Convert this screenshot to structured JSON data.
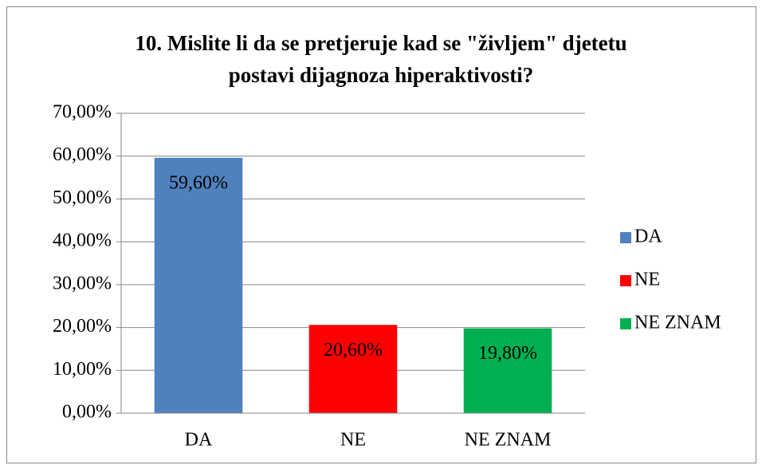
{
  "chart_data": {
    "type": "bar",
    "title": "10. Mislite li da se pretjeruje kad se \"življem\" djetetu postavi dijagnoza hiperaktivosti?",
    "categories": [
      "DA",
      "NE",
      "NE ZNAM"
    ],
    "values": [
      59.6,
      20.6,
      19.8
    ],
    "value_labels": [
      "59,60%",
      "20,60%",
      "19,80%"
    ],
    "colors": [
      "#4f81bd",
      "#ff0000",
      "#00b050"
    ],
    "ylim": [
      0,
      70
    ],
    "yticks": [
      {
        "value": 0,
        "label": "0,00%"
      },
      {
        "value": 10,
        "label": "10,00%"
      },
      {
        "value": 20,
        "label": "20,00%"
      },
      {
        "value": 30,
        "label": "30,00%"
      },
      {
        "value": 40,
        "label": "40,00%"
      },
      {
        "value": 50,
        "label": "50,00%"
      },
      {
        "value": 60,
        "label": "60,00%"
      },
      {
        "value": 70,
        "label": "70,00%"
      }
    ],
    "grid": true,
    "legend": "right"
  }
}
